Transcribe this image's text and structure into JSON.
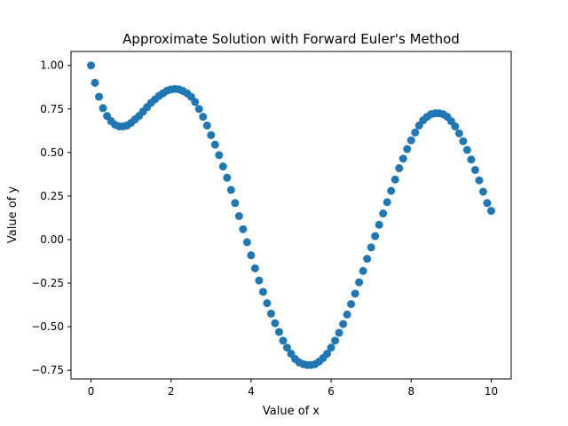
{
  "chart_data": {
    "type": "scatter",
    "title": "Approximate Solution with Forward Euler's Method",
    "xlabel": "Value of x",
    "ylabel": "Value of y",
    "xlim": [
      -0.5,
      10.5
    ],
    "ylim": [
      -0.8,
      1.08
    ],
    "xticks": [
      0,
      2,
      4,
      6,
      8,
      10
    ],
    "xtick_labels": [
      "0",
      "2",
      "4",
      "6",
      "8",
      "10"
    ],
    "yticks": [
      -0.75,
      -0.5,
      -0.25,
      0.0,
      0.25,
      0.5,
      0.75,
      1.0
    ],
    "ytick_labels": [
      "−0.75",
      "−0.50",
      "−0.25",
      "0.00",
      "0.25",
      "0.50",
      "0.75",
      "1.00"
    ],
    "grid": false,
    "legend": "none",
    "marker_color": "#1f77b4",
    "series": [
      {
        "x": [
          0.0,
          0.1,
          0.2,
          0.3,
          0.4,
          0.5,
          0.6,
          0.7,
          0.8,
          0.9,
          1.0,
          1.1,
          1.2,
          1.3,
          1.4,
          1.5,
          1.6,
          1.7,
          1.8,
          1.9,
          2.0,
          2.1,
          2.2,
          2.3,
          2.4,
          2.5,
          2.6,
          2.7,
          2.8,
          2.9,
          3.0,
          3.1,
          3.2,
          3.3,
          3.4,
          3.5,
          3.6,
          3.7,
          3.8,
          3.9,
          4.0,
          4.1,
          4.2,
          4.3,
          4.4,
          4.5,
          4.6,
          4.7,
          4.8,
          4.9,
          5.0,
          5.1,
          5.2,
          5.3,
          5.4,
          5.5,
          5.6,
          5.7,
          5.8,
          5.9,
          6.0,
          6.1,
          6.2,
          6.3,
          6.4,
          6.5,
          6.6,
          6.7,
          6.8,
          6.9,
          7.0,
          7.1,
          7.2,
          7.3,
          7.4,
          7.5,
          7.6,
          7.7,
          7.8,
          7.9,
          8.0,
          8.1,
          8.2,
          8.3,
          8.4,
          8.5,
          8.6,
          8.7,
          8.8,
          8.9,
          9.0,
          9.1,
          9.2,
          9.3,
          9.4,
          9.5,
          9.6,
          9.7,
          9.8,
          9.9,
          10.0
        ],
        "y": [
          1.0,
          0.9,
          0.82,
          0.755,
          0.71,
          0.68,
          0.66,
          0.65,
          0.65,
          0.655,
          0.67,
          0.69,
          0.71,
          0.735,
          0.76,
          0.785,
          0.805,
          0.825,
          0.84,
          0.855,
          0.862,
          0.865,
          0.862,
          0.853,
          0.84,
          0.82,
          0.79,
          0.75,
          0.705,
          0.655,
          0.6,
          0.545,
          0.485,
          0.42,
          0.355,
          0.285,
          0.21,
          0.135,
          0.06,
          -0.015,
          -0.09,
          -0.165,
          -0.235,
          -0.3,
          -0.365,
          -0.425,
          -0.48,
          -0.53,
          -0.58,
          -0.62,
          -0.655,
          -0.685,
          -0.705,
          -0.715,
          -0.72,
          -0.72,
          -0.715,
          -0.7,
          -0.68,
          -0.655,
          -0.62,
          -0.58,
          -0.535,
          -0.485,
          -0.43,
          -0.37,
          -0.31,
          -0.245,
          -0.18,
          -0.11,
          -0.045,
          0.02,
          0.085,
          0.15,
          0.215,
          0.28,
          0.345,
          0.41,
          0.465,
          0.52,
          0.57,
          0.615,
          0.655,
          0.685,
          0.705,
          0.72,
          0.725,
          0.725,
          0.72,
          0.705,
          0.68,
          0.65,
          0.61,
          0.565,
          0.515,
          0.46,
          0.4,
          0.34,
          0.275,
          0.21,
          0.165
        ]
      }
    ]
  }
}
